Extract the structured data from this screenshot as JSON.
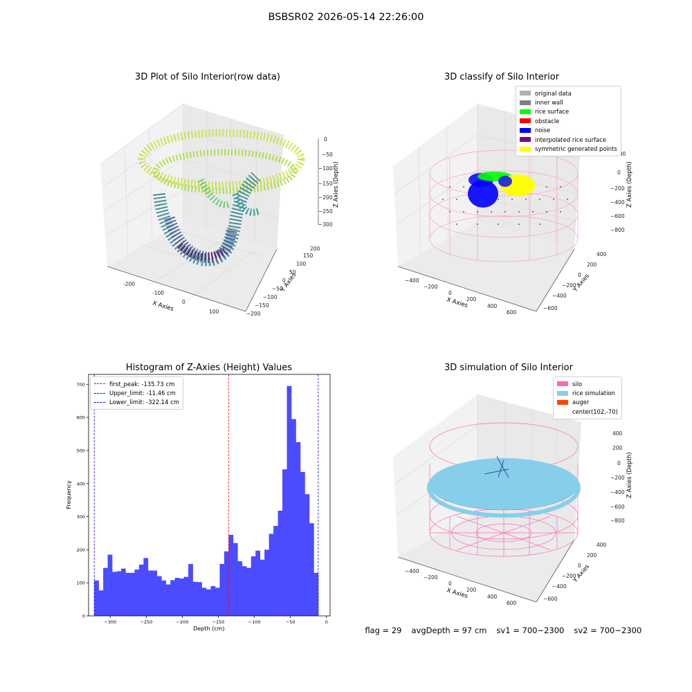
{
  "suptitle": "BSBSR02 2026-05-14 22:26:00",
  "plots": {
    "p1": {
      "title": "3D Plot of Silo Interior(row data)",
      "xlabel": "X Axies",
      "ylabel": "Y Axies",
      "zlabel": "Z Axies (Depth)",
      "xticks": [
        "-200",
        "-100",
        "0",
        "100"
      ],
      "yticks": [
        "200",
        "150",
        "100",
        "50",
        "0",
        "−50",
        "−100",
        "−150",
        "−200"
      ],
      "zticks": [
        "0",
        "−50",
        "−100",
        "−150",
        "−200",
        "−250",
        "−300"
      ]
    },
    "p2": {
      "title": "3D classify of Silo Interior",
      "xlabel": "X Axies",
      "ylabel": "Y Axies",
      "zlabel": "Z Axies (Depth)",
      "xticks": [
        "−400",
        "−200",
        "0",
        "200",
        "400",
        "600"
      ],
      "yticks": [
        "400",
        "200",
        "0",
        "−200",
        "−400",
        "−600"
      ],
      "zticks": [
        "200",
        "0",
        "−200",
        "−400",
        "−600",
        "−800"
      ],
      "legend": [
        {
          "label": "original data",
          "color": "#b0b0b0"
        },
        {
          "label": "inner wall",
          "color": "#808080"
        },
        {
          "label": "rice surface",
          "color": "#00ff00"
        },
        {
          "label": "obstacle",
          "color": "#ff0000"
        },
        {
          "label": "noise",
          "color": "#0000ff"
        },
        {
          "label": "interpolated rice surface",
          "color": "#800080"
        },
        {
          "label": "symmetric generated points",
          "color": "#ffff00"
        }
      ]
    },
    "p4": {
      "title": "3D simulation of Silo Interior",
      "xlabel": "X Axies",
      "ylabel": "Y Axies",
      "zlabel": "Z Axies (Depth)",
      "xticks": [
        "−400",
        "−200",
        "0",
        "200",
        "400",
        "600"
      ],
      "yticks": [
        "400",
        "200",
        "0",
        "−200",
        "−400",
        "−600"
      ],
      "zticks": [
        "400",
        "200",
        "0",
        "−200",
        "−400",
        "−600",
        "−800"
      ],
      "legend": [
        {
          "label": "silo",
          "color": "#ff69b4"
        },
        {
          "label": "rice simulation",
          "color": "#87ceeb"
        },
        {
          "label": "auger",
          "color": "#ff4500"
        },
        {
          "label": "center(102,-70)",
          "color": ""
        }
      ]
    }
  },
  "chart_data": [
    {
      "type": "histogram",
      "title": "Histogram of Z-Axies (Height) Values",
      "xlabel": "Depth (cm)",
      "ylabel": "Frequency",
      "xlim": [
        -330,
        5
      ],
      "ylim": [
        0,
        730
      ],
      "xticks": [
        -300,
        -250,
        -200,
        -150,
        -100,
        -50,
        0
      ],
      "yticks": [
        0,
        100,
        200,
        300,
        400,
        500,
        600,
        700
      ],
      "bar_color": "#4b4bff",
      "bin_start": -322.14,
      "bin_width": 6.214,
      "values": [
        107,
        77,
        145,
        185,
        133,
        135,
        143,
        130,
        130,
        140,
        155,
        175,
        137,
        137,
        120,
        107,
        95,
        108,
        115,
        113,
        118,
        157,
        103,
        102,
        85,
        80,
        90,
        85,
        157,
        195,
        245,
        220,
        165,
        150,
        145,
        180,
        197,
        170,
        200,
        248,
        272,
        318,
        443,
        695,
        595,
        525,
        435,
        368,
        280,
        130
      ],
      "vlines": [
        {
          "label": "first_peak: -135.73 cm",
          "x": -135.73,
          "color": "#ff0000"
        },
        {
          "label": "Upper_limit: -11.46 cm",
          "x": -11.46,
          "color": "#0000ff"
        },
        {
          "label": "Lower_limit: -322.14 cm",
          "x": -322.14,
          "color": "#0000ff"
        }
      ]
    }
  ],
  "status": {
    "flag": "flag = 29",
    "avg_depth": "avgDepth = 97 cm",
    "sv1": "sv1 = 700~2300",
    "sv2": "sv2 = 700~2300"
  }
}
